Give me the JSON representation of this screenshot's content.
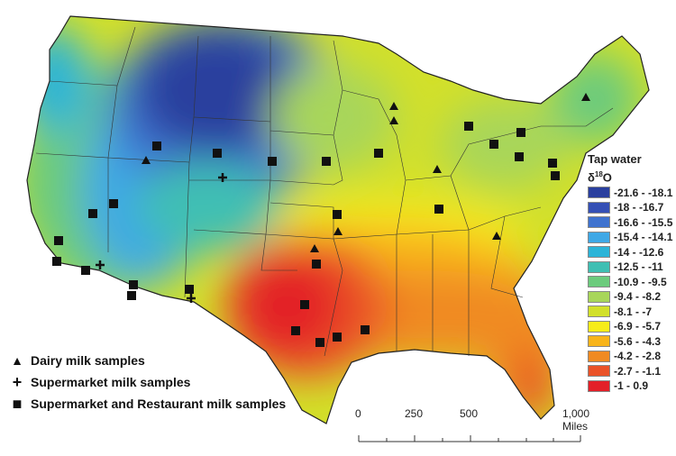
{
  "legend": {
    "title": "Tap water",
    "subtitle_prefix": "δ",
    "subtitle_sup": "18",
    "subtitle_suffix": "O",
    "classes": [
      {
        "label": "-21.6 - -18.1",
        "color": "#2a3f9e"
      },
      {
        "label": "-18 - -16.7",
        "color": "#3550b5"
      },
      {
        "label": "-16.6 - -15.5",
        "color": "#3f73cf"
      },
      {
        "label": "-15.4 - -14.1",
        "color": "#3fa8e6"
      },
      {
        "label": "-14 - -12.6",
        "color": "#2cb4d8"
      },
      {
        "label": "-12.5 - -11",
        "color": "#3fbfb3"
      },
      {
        "label": "-10.9 - -9.5",
        "color": "#6ccb7d"
      },
      {
        "label": "-9.4 - -8.2",
        "color": "#a8d65a"
      },
      {
        "label": "-8.1 - -7",
        "color": "#d2e02a"
      },
      {
        "label": "-6.9 - -5.7",
        "color": "#f7ec1a"
      },
      {
        "label": "-5.6 - -4.3",
        "color": "#f8b41a"
      },
      {
        "label": "-4.2 - -2.8",
        "color": "#f08a22"
      },
      {
        "label": "-2.7 - -1.1",
        "color": "#ea5228"
      },
      {
        "label": "-1 - 0.9",
        "color": "#e32028"
      }
    ]
  },
  "sample_key": [
    {
      "symbol": "▲",
      "label": "Dairy milk samples"
    },
    {
      "symbol": "+",
      "label": "Supermarket milk samples"
    },
    {
      "symbol": "■",
      "label": "Supermarket and Restaurant milk samples"
    }
  ],
  "scale_bar": {
    "ticks": [
      "0",
      "250",
      "500",
      "1,000 Miles"
    ]
  }
}
